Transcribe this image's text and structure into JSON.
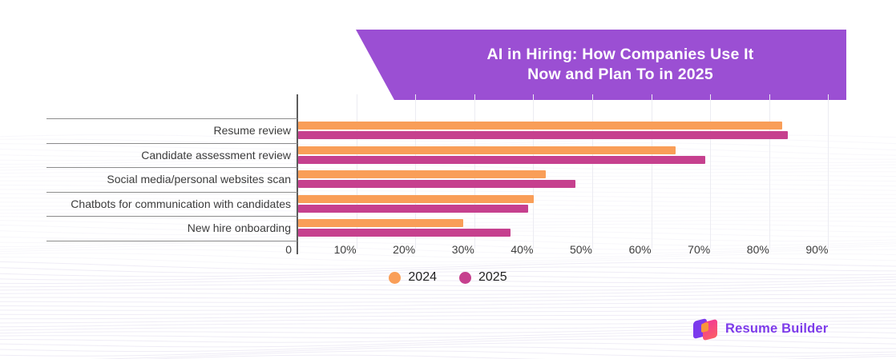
{
  "banner": {
    "title_line1": "AI in Hiring: How Companies Use It",
    "title_line2": "Now and Plan To in 2025",
    "background_color": "#9B4FD3"
  },
  "chart_data": {
    "type": "bar",
    "orientation": "horizontal",
    "title": "AI in Hiring: How Companies Use It Now and Plan To in 2025",
    "categories": [
      "Resume review",
      "Candidate assessment review",
      "Social media/personal websites scan",
      "Chatbots for communication with candidates",
      "New hire onboarding"
    ],
    "series": [
      {
        "name": "2024",
        "color": "#F99E58",
        "values": [
          82,
          64,
          42,
          40,
          28
        ]
      },
      {
        "name": "2025",
        "color": "#C6408E",
        "values": [
          83,
          69,
          47,
          39,
          36
        ]
      }
    ],
    "x_axis": {
      "min": 0,
      "max": 95,
      "tick_step": 10,
      "tick_labels": [
        "0",
        "10%",
        "20%",
        "30%",
        "40%",
        "50%",
        "60%",
        "70%",
        "80%",
        "90%"
      ],
      "unit": "percent"
    },
    "grid": true,
    "legend_position": "bottom"
  },
  "legend": {
    "items": [
      {
        "label": "2024",
        "color": "#F99E58"
      },
      {
        "label": "2025",
        "color": "#C6408E"
      }
    ]
  },
  "branding": {
    "logo_text": "Resume Builder",
    "logo_color": "#7D3BEA"
  }
}
